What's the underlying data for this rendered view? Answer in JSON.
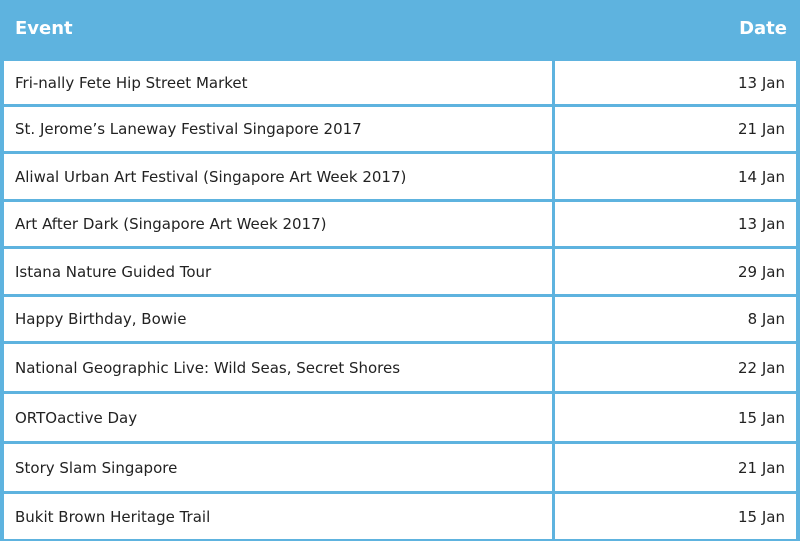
{
  "table": {
    "headers": {
      "event": "Event",
      "date": "Date"
    },
    "rows": [
      {
        "event": "Fri-nally Fete Hip Street Market",
        "date": "13 Jan"
      },
      {
        "event": "St. Jerome’s Laneway Festival Singapore 2017",
        "date": "21 Jan"
      },
      {
        "event": "Aliwal Urban Art Festival (Singapore Art Week 2017)",
        "date": "14 Jan"
      },
      {
        "event": "Art After Dark (Singapore Art Week 2017)",
        "date": "13 Jan"
      },
      {
        "event": "Istana Nature Guided Tour",
        "date": "29 Jan"
      },
      {
        "event": "Happy Birthday, Bowie",
        "date": "8 Jan"
      },
      {
        "event": "National Geographic Live: Wild Seas, Secret Shores",
        "date": "22 Jan"
      },
      {
        "event": "ORTOactive Day",
        "date": "15 Jan"
      },
      {
        "event": "Story Slam Singapore",
        "date": "21 Jan"
      },
      {
        "event": "Bukit Brown Heritage Trail",
        "date": "15 Jan"
      }
    ]
  },
  "colors": {
    "header_bg": "#5eb3df",
    "header_text": "#ffffff",
    "border": "#5eb3df"
  }
}
